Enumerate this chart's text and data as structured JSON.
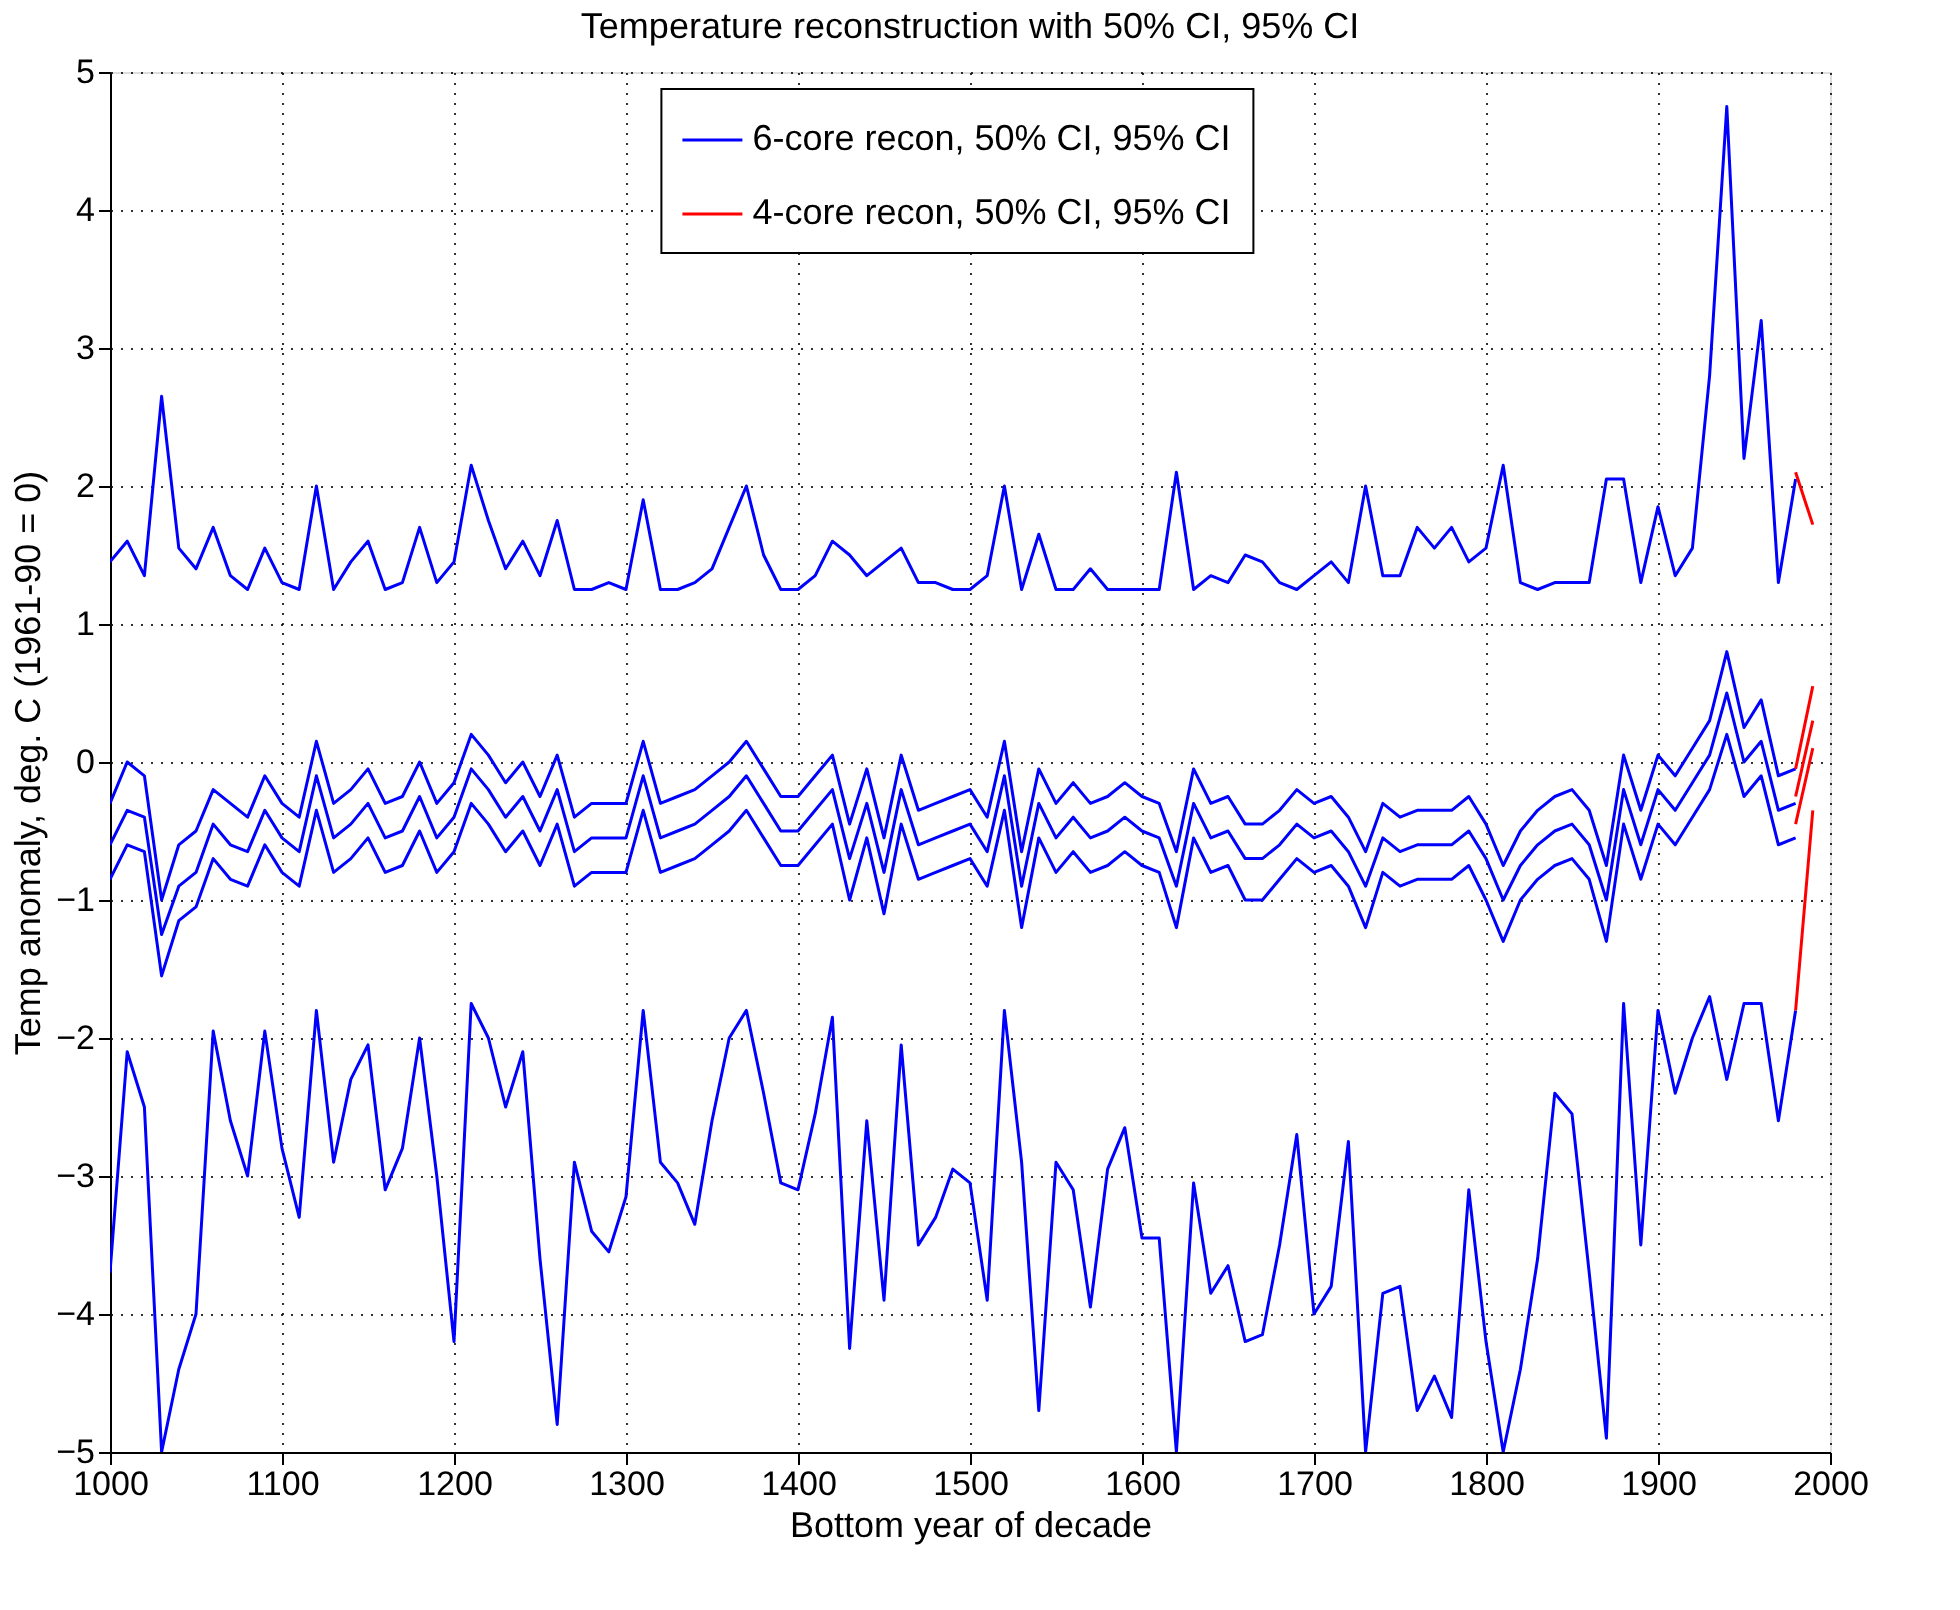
{
  "chart_data": {
    "type": "line",
    "title": "Temperature reconstruction with 50% CI, 95% CI",
    "xlabel": "Bottom year of decade",
    "ylabel": "Temp anomaly, deg. C (1961-90 = 0)",
    "xlim": [
      1000,
      2000
    ],
    "xticks": [
      1000,
      1100,
      1200,
      1300,
      1400,
      1500,
      1600,
      1700,
      1800,
      1900,
      2000
    ],
    "ylim": [
      -5,
      5
    ],
    "yticks": [
      -5,
      -4,
      -3,
      -2,
      -1,
      0,
      1,
      2,
      3,
      4,
      5
    ],
    "grid": true,
    "legend": "top",
    "marker": "none",
    "line_style": "solid",
    "x": [
      1000,
      1010,
      1020,
      1030,
      1040,
      1050,
      1060,
      1070,
      1080,
      1090,
      1100,
      1110,
      1120,
      1130,
      1140,
      1150,
      1160,
      1170,
      1180,
      1190,
      1200,
      1210,
      1220,
      1230,
      1240,
      1250,
      1260,
      1270,
      1280,
      1290,
      1300,
      1310,
      1320,
      1330,
      1340,
      1350,
      1360,
      1370,
      1380,
      1390,
      1400,
      1410,
      1420,
      1430,
      1440,
      1450,
      1460,
      1470,
      1480,
      1490,
      1500,
      1510,
      1520,
      1530,
      1540,
      1550,
      1560,
      1570,
      1580,
      1590,
      1600,
      1610,
      1620,
      1630,
      1640,
      1650,
      1660,
      1670,
      1680,
      1690,
      1700,
      1710,
      1720,
      1730,
      1740,
      1750,
      1760,
      1770,
      1780,
      1790,
      1800,
      1810,
      1820,
      1830,
      1840,
      1850,
      1860,
      1870,
      1880,
      1890,
      1900,
      1910,
      1920,
      1930,
      1940,
      1950,
      1960,
      1970,
      1980,
      1990
    ],
    "series": [
      {
        "name": "6-core recon, 50% CI, 95% CI",
        "color": "#0000ff",
        "values": [
          1.45,
          1.6,
          1.35,
          2.65,
          1.55,
          1.4,
          1.7,
          1.35,
          1.25,
          1.55,
          1.3,
          1.25,
          2.0,
          1.25,
          1.45,
          1.6,
          1.25,
          1.3,
          1.7,
          1.3,
          1.45,
          2.15,
          1.75,
          1.4,
          1.6,
          1.35,
          1.75,
          1.25,
          1.25,
          1.3,
          1.25,
          1.9,
          1.25,
          1.25,
          1.3,
          1.4,
          1.7,
          2.0,
          1.5,
          1.25,
          1.25,
          1.35,
          1.6,
          1.5,
          1.35,
          1.45,
          1.55,
          1.3,
          1.3,
          1.25,
          1.25,
          1.35,
          2.0,
          1.25,
          1.65,
          1.25,
          1.25,
          1.4,
          1.25,
          1.25,
          1.25,
          1.25,
          2.1,
          1.25,
          1.35,
          1.3,
          1.5,
          1.45,
          1.3,
          1.25,
          1.35,
          1.45,
          1.3,
          2.0,
          1.35,
          1.35,
          1.7,
          1.55,
          1.7,
          1.45,
          1.55,
          2.15,
          1.3,
          1.25,
          1.3,
          1.3,
          1.3,
          2.05,
          2.05,
          1.3,
          1.85,
          1.35,
          1.55,
          2.8,
          4.75,
          2.2,
          3.2,
          1.3,
          2.05,
          null
        ]
      },
      {
        "color": "#0000ff",
        "values": [
          -0.3,
          0.0,
          -0.1,
          -1.0,
          -0.6,
          -0.5,
          -0.2,
          -0.3,
          -0.4,
          -0.1,
          -0.3,
          -0.4,
          0.15,
          -0.3,
          -0.2,
          -0.05,
          -0.3,
          -0.25,
          0.0,
          -0.3,
          -0.15,
          0.2,
          0.05,
          -0.15,
          0.0,
          -0.25,
          0.05,
          -0.4,
          -0.3,
          -0.3,
          -0.3,
          0.15,
          -0.3,
          -0.25,
          -0.2,
          -0.1,
          0.0,
          0.15,
          -0.05,
          -0.25,
          -0.25,
          -0.1,
          0.05,
          -0.45,
          -0.05,
          -0.55,
          0.05,
          -0.35,
          -0.3,
          -0.25,
          -0.2,
          -0.4,
          0.15,
          -0.65,
          -0.05,
          -0.3,
          -0.15,
          -0.3,
          -0.25,
          -0.15,
          -0.25,
          -0.3,
          -0.65,
          -0.05,
          -0.3,
          -0.25,
          -0.45,
          -0.45,
          -0.35,
          -0.2,
          -0.3,
          -0.25,
          -0.4,
          -0.65,
          -0.3,
          -0.4,
          -0.35,
          -0.35,
          -0.35,
          -0.25,
          -0.45,
          -0.75,
          -0.5,
          -0.35,
          -0.25,
          -0.2,
          -0.35,
          -0.75,
          0.05,
          -0.35,
          0.05,
          -0.1,
          0.1,
          0.3,
          0.8,
          0.25,
          0.45,
          -0.1,
          -0.05,
          null
        ]
      },
      {
        "color": "#0000ff",
        "values": [
          -0.6,
          -0.35,
          -0.4,
          -1.25,
          -0.9,
          -0.8,
          -0.45,
          -0.6,
          -0.65,
          -0.35,
          -0.55,
          -0.65,
          -0.1,
          -0.55,
          -0.45,
          -0.3,
          -0.55,
          -0.5,
          -0.25,
          -0.55,
          -0.4,
          -0.05,
          -0.2,
          -0.4,
          -0.25,
          -0.5,
          -0.2,
          -0.65,
          -0.55,
          -0.55,
          -0.55,
          -0.1,
          -0.55,
          -0.5,
          -0.45,
          -0.35,
          -0.25,
          -0.1,
          -0.3,
          -0.5,
          -0.5,
          -0.35,
          -0.2,
          -0.7,
          -0.3,
          -0.8,
          -0.2,
          -0.6,
          -0.55,
          -0.5,
          -0.45,
          -0.65,
          -0.1,
          -0.9,
          -0.3,
          -0.55,
          -0.4,
          -0.55,
          -0.5,
          -0.4,
          -0.5,
          -0.55,
          -0.9,
          -0.3,
          -0.55,
          -0.5,
          -0.7,
          -0.7,
          -0.6,
          -0.45,
          -0.55,
          -0.5,
          -0.65,
          -0.9,
          -0.55,
          -0.65,
          -0.6,
          -0.6,
          -0.6,
          -0.5,
          -0.7,
          -1.0,
          -0.75,
          -0.6,
          -0.5,
          -0.45,
          -0.6,
          -1.0,
          -0.2,
          -0.6,
          -0.2,
          -0.35,
          -0.15,
          0.05,
          0.5,
          0.0,
          0.15,
          -0.35,
          -0.3,
          null
        ]
      },
      {
        "color": "#0000ff",
        "values": [
          -0.85,
          -0.6,
          -0.65,
          -1.55,
          -1.15,
          -1.05,
          -0.7,
          -0.85,
          -0.9,
          -0.6,
          -0.8,
          -0.9,
          -0.35,
          -0.8,
          -0.7,
          -0.55,
          -0.8,
          -0.75,
          -0.5,
          -0.8,
          -0.65,
          -0.3,
          -0.45,
          -0.65,
          -0.5,
          -0.75,
          -0.45,
          -0.9,
          -0.8,
          -0.8,
          -0.8,
          -0.35,
          -0.8,
          -0.75,
          -0.7,
          -0.6,
          -0.5,
          -0.35,
          -0.55,
          -0.75,
          -0.75,
          -0.6,
          -0.45,
          -1.0,
          -0.55,
          -1.1,
          -0.45,
          -0.85,
          -0.8,
          -0.75,
          -0.7,
          -0.9,
          -0.35,
          -1.2,
          -0.55,
          -0.8,
          -0.65,
          -0.8,
          -0.75,
          -0.65,
          -0.75,
          -0.8,
          -1.2,
          -0.55,
          -0.8,
          -0.75,
          -1.0,
          -1.0,
          -0.85,
          -0.7,
          -0.8,
          -0.75,
          -0.9,
          -1.2,
          -0.8,
          -0.9,
          -0.85,
          -0.85,
          -0.85,
          -0.75,
          -1.0,
          -1.3,
          -1.0,
          -0.85,
          -0.75,
          -0.7,
          -0.85,
          -1.3,
          -0.45,
          -0.85,
          -0.45,
          -0.6,
          -0.4,
          -0.2,
          0.2,
          -0.25,
          -0.1,
          -0.6,
          -0.55,
          null
        ]
      },
      {
        "color": "#0000ff",
        "values": [
          -3.7,
          -2.1,
          -2.5,
          -5.0,
          -4.4,
          -4.0,
          -1.95,
          -2.6,
          -3.0,
          -1.95,
          -2.8,
          -3.3,
          -1.8,
          -2.9,
          -2.3,
          -2.05,
          -3.1,
          -2.8,
          -2.0,
          -3.0,
          -4.2,
          -1.75,
          -2.0,
          -2.5,
          -2.1,
          -3.6,
          -4.8,
          -2.9,
          -3.4,
          -3.55,
          -3.15,
          -1.8,
          -2.9,
          -3.05,
          -3.35,
          -2.6,
          -2.0,
          -1.8,
          -2.4,
          -3.05,
          -3.1,
          -2.55,
          -1.85,
          -4.25,
          -2.6,
          -3.9,
          -2.05,
          -3.5,
          -3.3,
          -2.95,
          -3.05,
          -3.9,
          -1.8,
          -2.9,
          -4.7,
          -2.9,
          -3.1,
          -3.95,
          -2.95,
          -2.65,
          -3.45,
          -3.45,
          -5.0,
          -3.05,
          -3.85,
          -3.65,
          -4.2,
          -4.15,
          -3.5,
          -2.7,
          -4.0,
          -3.8,
          -2.75,
          -5.0,
          -3.85,
          -3.8,
          -4.7,
          -4.45,
          -4.75,
          -3.1,
          -4.2,
          -5.0,
          -4.4,
          -3.6,
          -2.4,
          -2.55,
          -3.7,
          -4.9,
          -1.75,
          -3.5,
          -1.8,
          -2.4,
          -2.0,
          -1.7,
          -2.3,
          -1.75,
          -1.75,
          -2.6,
          -1.8,
          null
        ]
      },
      {
        "name": "4-core recon, 50% CI, 95% CI",
        "color": "#ff0000",
        "values": [
          null,
          null,
          null,
          null,
          null,
          null,
          null,
          null,
          null,
          null,
          null,
          null,
          null,
          null,
          null,
          null,
          null,
          null,
          null,
          null,
          null,
          null,
          null,
          null,
          null,
          null,
          null,
          null,
          null,
          null,
          null,
          null,
          null,
          null,
          null,
          null,
          null,
          null,
          null,
          null,
          null,
          null,
          null,
          null,
          null,
          null,
          null,
          null,
          null,
          null,
          null,
          null,
          null,
          null,
          null,
          null,
          null,
          null,
          null,
          null,
          null,
          null,
          null,
          null,
          null,
          null,
          null,
          null,
          null,
          null,
          null,
          null,
          null,
          null,
          null,
          null,
          null,
          null,
          null,
          null,
          null,
          null,
          null,
          null,
          null,
          null,
          null,
          null,
          null,
          null,
          null,
          null,
          null,
          null,
          null,
          null,
          null,
          null,
          2.1,
          1.72
        ]
      },
      {
        "color": "#ff0000",
        "values": [
          null,
          null,
          null,
          null,
          null,
          null,
          null,
          null,
          null,
          null,
          null,
          null,
          null,
          null,
          null,
          null,
          null,
          null,
          null,
          null,
          null,
          null,
          null,
          null,
          null,
          null,
          null,
          null,
          null,
          null,
          null,
          null,
          null,
          null,
          null,
          null,
          null,
          null,
          null,
          null,
          null,
          null,
          null,
          null,
          null,
          null,
          null,
          null,
          null,
          null,
          null,
          null,
          null,
          null,
          null,
          null,
          null,
          null,
          null,
          null,
          null,
          null,
          null,
          null,
          null,
          null,
          null,
          null,
          null,
          null,
          null,
          null,
          null,
          null,
          null,
          null,
          null,
          null,
          null,
          null,
          null,
          null,
          null,
          null,
          null,
          null,
          null,
          null,
          null,
          null,
          null,
          null,
          null,
          null,
          null,
          null,
          null,
          null,
          -0.05,
          0.55
        ]
      },
      {
        "color": "#ff0000",
        "values": [
          null,
          null,
          null,
          null,
          null,
          null,
          null,
          null,
          null,
          null,
          null,
          null,
          null,
          null,
          null,
          null,
          null,
          null,
          null,
          null,
          null,
          null,
          null,
          null,
          null,
          null,
          null,
          null,
          null,
          null,
          null,
          null,
          null,
          null,
          null,
          null,
          null,
          null,
          null,
          null,
          null,
          null,
          null,
          null,
          null,
          null,
          null,
          null,
          null,
          null,
          null,
          null,
          null,
          null,
          null,
          null,
          null,
          null,
          null,
          null,
          null,
          null,
          null,
          null,
          null,
          null,
          null,
          null,
          null,
          null,
          null,
          null,
          null,
          null,
          null,
          null,
          null,
          null,
          null,
          null,
          null,
          null,
          null,
          null,
          null,
          null,
          null,
          null,
          null,
          null,
          null,
          null,
          null,
          null,
          null,
          null,
          null,
          null,
          -0.25,
          0.3
        ]
      },
      {
        "color": "#ff0000",
        "values": [
          null,
          null,
          null,
          null,
          null,
          null,
          null,
          null,
          null,
          null,
          null,
          null,
          null,
          null,
          null,
          null,
          null,
          null,
          null,
          null,
          null,
          null,
          null,
          null,
          null,
          null,
          null,
          null,
          null,
          null,
          null,
          null,
          null,
          null,
          null,
          null,
          null,
          null,
          null,
          null,
          null,
          null,
          null,
          null,
          null,
          null,
          null,
          null,
          null,
          null,
          null,
          null,
          null,
          null,
          null,
          null,
          null,
          null,
          null,
          null,
          null,
          null,
          null,
          null,
          null,
          null,
          null,
          null,
          null,
          null,
          null,
          null,
          null,
          null,
          null,
          null,
          null,
          null,
          null,
          null,
          null,
          null,
          null,
          null,
          null,
          null,
          null,
          null,
          null,
          null,
          null,
          null,
          null,
          null,
          null,
          null,
          null,
          null,
          -0.45,
          0.1
        ]
      },
      {
        "color": "#ff0000",
        "values": [
          null,
          null,
          null,
          null,
          null,
          null,
          null,
          null,
          null,
          null,
          null,
          null,
          null,
          null,
          null,
          null,
          null,
          null,
          null,
          null,
          null,
          null,
          null,
          null,
          null,
          null,
          null,
          null,
          null,
          null,
          null,
          null,
          null,
          null,
          null,
          null,
          null,
          null,
          null,
          null,
          null,
          null,
          null,
          null,
          null,
          null,
          null,
          null,
          null,
          null,
          null,
          null,
          null,
          null,
          null,
          null,
          null,
          null,
          null,
          null,
          null,
          null,
          null,
          null,
          null,
          null,
          null,
          null,
          null,
          null,
          null,
          null,
          null,
          null,
          null,
          null,
          null,
          null,
          null,
          null,
          null,
          null,
          null,
          null,
          null,
          null,
          null,
          null,
          null,
          null,
          null,
          null,
          null,
          null,
          null,
          null,
          null,
          null,
          -1.8,
          -0.35
        ]
      }
    ]
  }
}
